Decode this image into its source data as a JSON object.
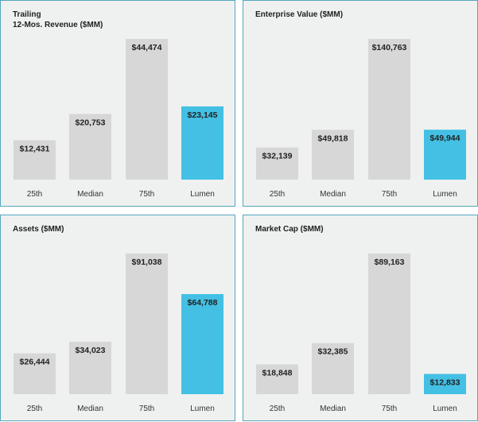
{
  "colors": {
    "bar_default": "#d6d7d6",
    "bar_highlight": "#43c0e4",
    "panel_bg": "#eff1f0",
    "panel_border": "#54a7bf"
  },
  "chart_data": [
    {
      "type": "bar",
      "title": "Trailing\n12-Mos. Revenue ($MM)",
      "categories": [
        "25th",
        "Median",
        "75th",
        "Lumen"
      ],
      "values": [
        12431,
        20753,
        44474,
        23145
      ],
      "value_labels": [
        "$12,431",
        "$20,753",
        "$44,474",
        "$23,145"
      ],
      "highlight": "Lumen"
    },
    {
      "type": "bar",
      "title": "Enterprise Value ($MM)",
      "categories": [
        "25th",
        "Median",
        "75th",
        "Lumen"
      ],
      "values": [
        32139,
        49818,
        140763,
        49944
      ],
      "value_labels": [
        "$32,139",
        "$49,818",
        "$140,763",
        "$49,944"
      ],
      "highlight": "Lumen"
    },
    {
      "type": "bar",
      "title": "Assets ($MM)",
      "categories": [
        "25th",
        "Median",
        "75th",
        "Lumen"
      ],
      "values": [
        26444,
        34023,
        91038,
        64788
      ],
      "value_labels": [
        "$26,444",
        "$34,023",
        "$91,038",
        "$64,788"
      ],
      "highlight": "Lumen"
    },
    {
      "type": "bar",
      "title": "Market Cap ($MM)",
      "categories": [
        "25th",
        "Median",
        "75th",
        "Lumen"
      ],
      "values": [
        18848,
        32385,
        89163,
        12833
      ],
      "value_labels": [
        "$18,848",
        "$32,385",
        "$89,163",
        "$12,833"
      ],
      "highlight": "Lumen"
    }
  ]
}
